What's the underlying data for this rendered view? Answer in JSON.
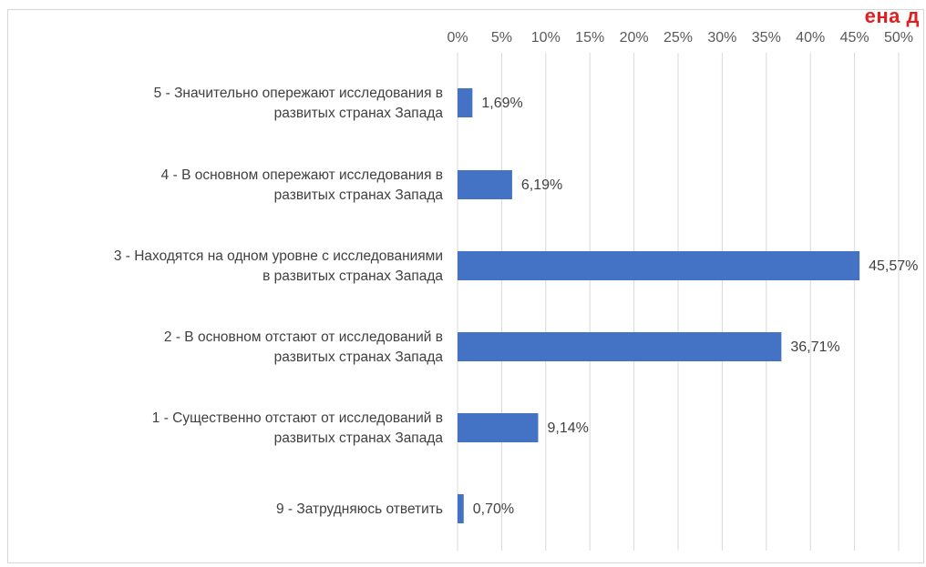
{
  "corner_text": "ена д",
  "chart_data": {
    "type": "bar",
    "orientation": "horizontal",
    "title": "",
    "xlabel": "",
    "ylabel": "",
    "xlim": [
      0,
      50
    ],
    "x_ticks": [
      "0%",
      "5%",
      "10%",
      "15%",
      "20%",
      "25%",
      "30%",
      "35%",
      "40%",
      "45%",
      "50%"
    ],
    "x_axis_position": "top",
    "grid": true,
    "bar_color": "#4472C4",
    "categories": [
      [
        "5 - Значительно опережают исследования в",
        "развитых странах Запада"
      ],
      [
        "4 - В основном опережают исследования в",
        "развитых странах Запада"
      ],
      [
        "3 - Находятся на одном уровне с исследованиями",
        "в развитых странах Запада"
      ],
      [
        "2 - В основном отстают от исследований в",
        "развитых странах Запада"
      ],
      [
        "1 - Существенно отстают от исследований в",
        "развитых странах Запада"
      ],
      [
        "9 - Затрудняюсь ответить"
      ]
    ],
    "values": [
      1.69,
      6.19,
      45.57,
      36.71,
      9.14,
      0.7
    ],
    "value_labels": [
      "1,69%",
      "6,19%",
      "45,57%",
      "36,71%",
      "9,14%",
      "0,70%"
    ]
  }
}
